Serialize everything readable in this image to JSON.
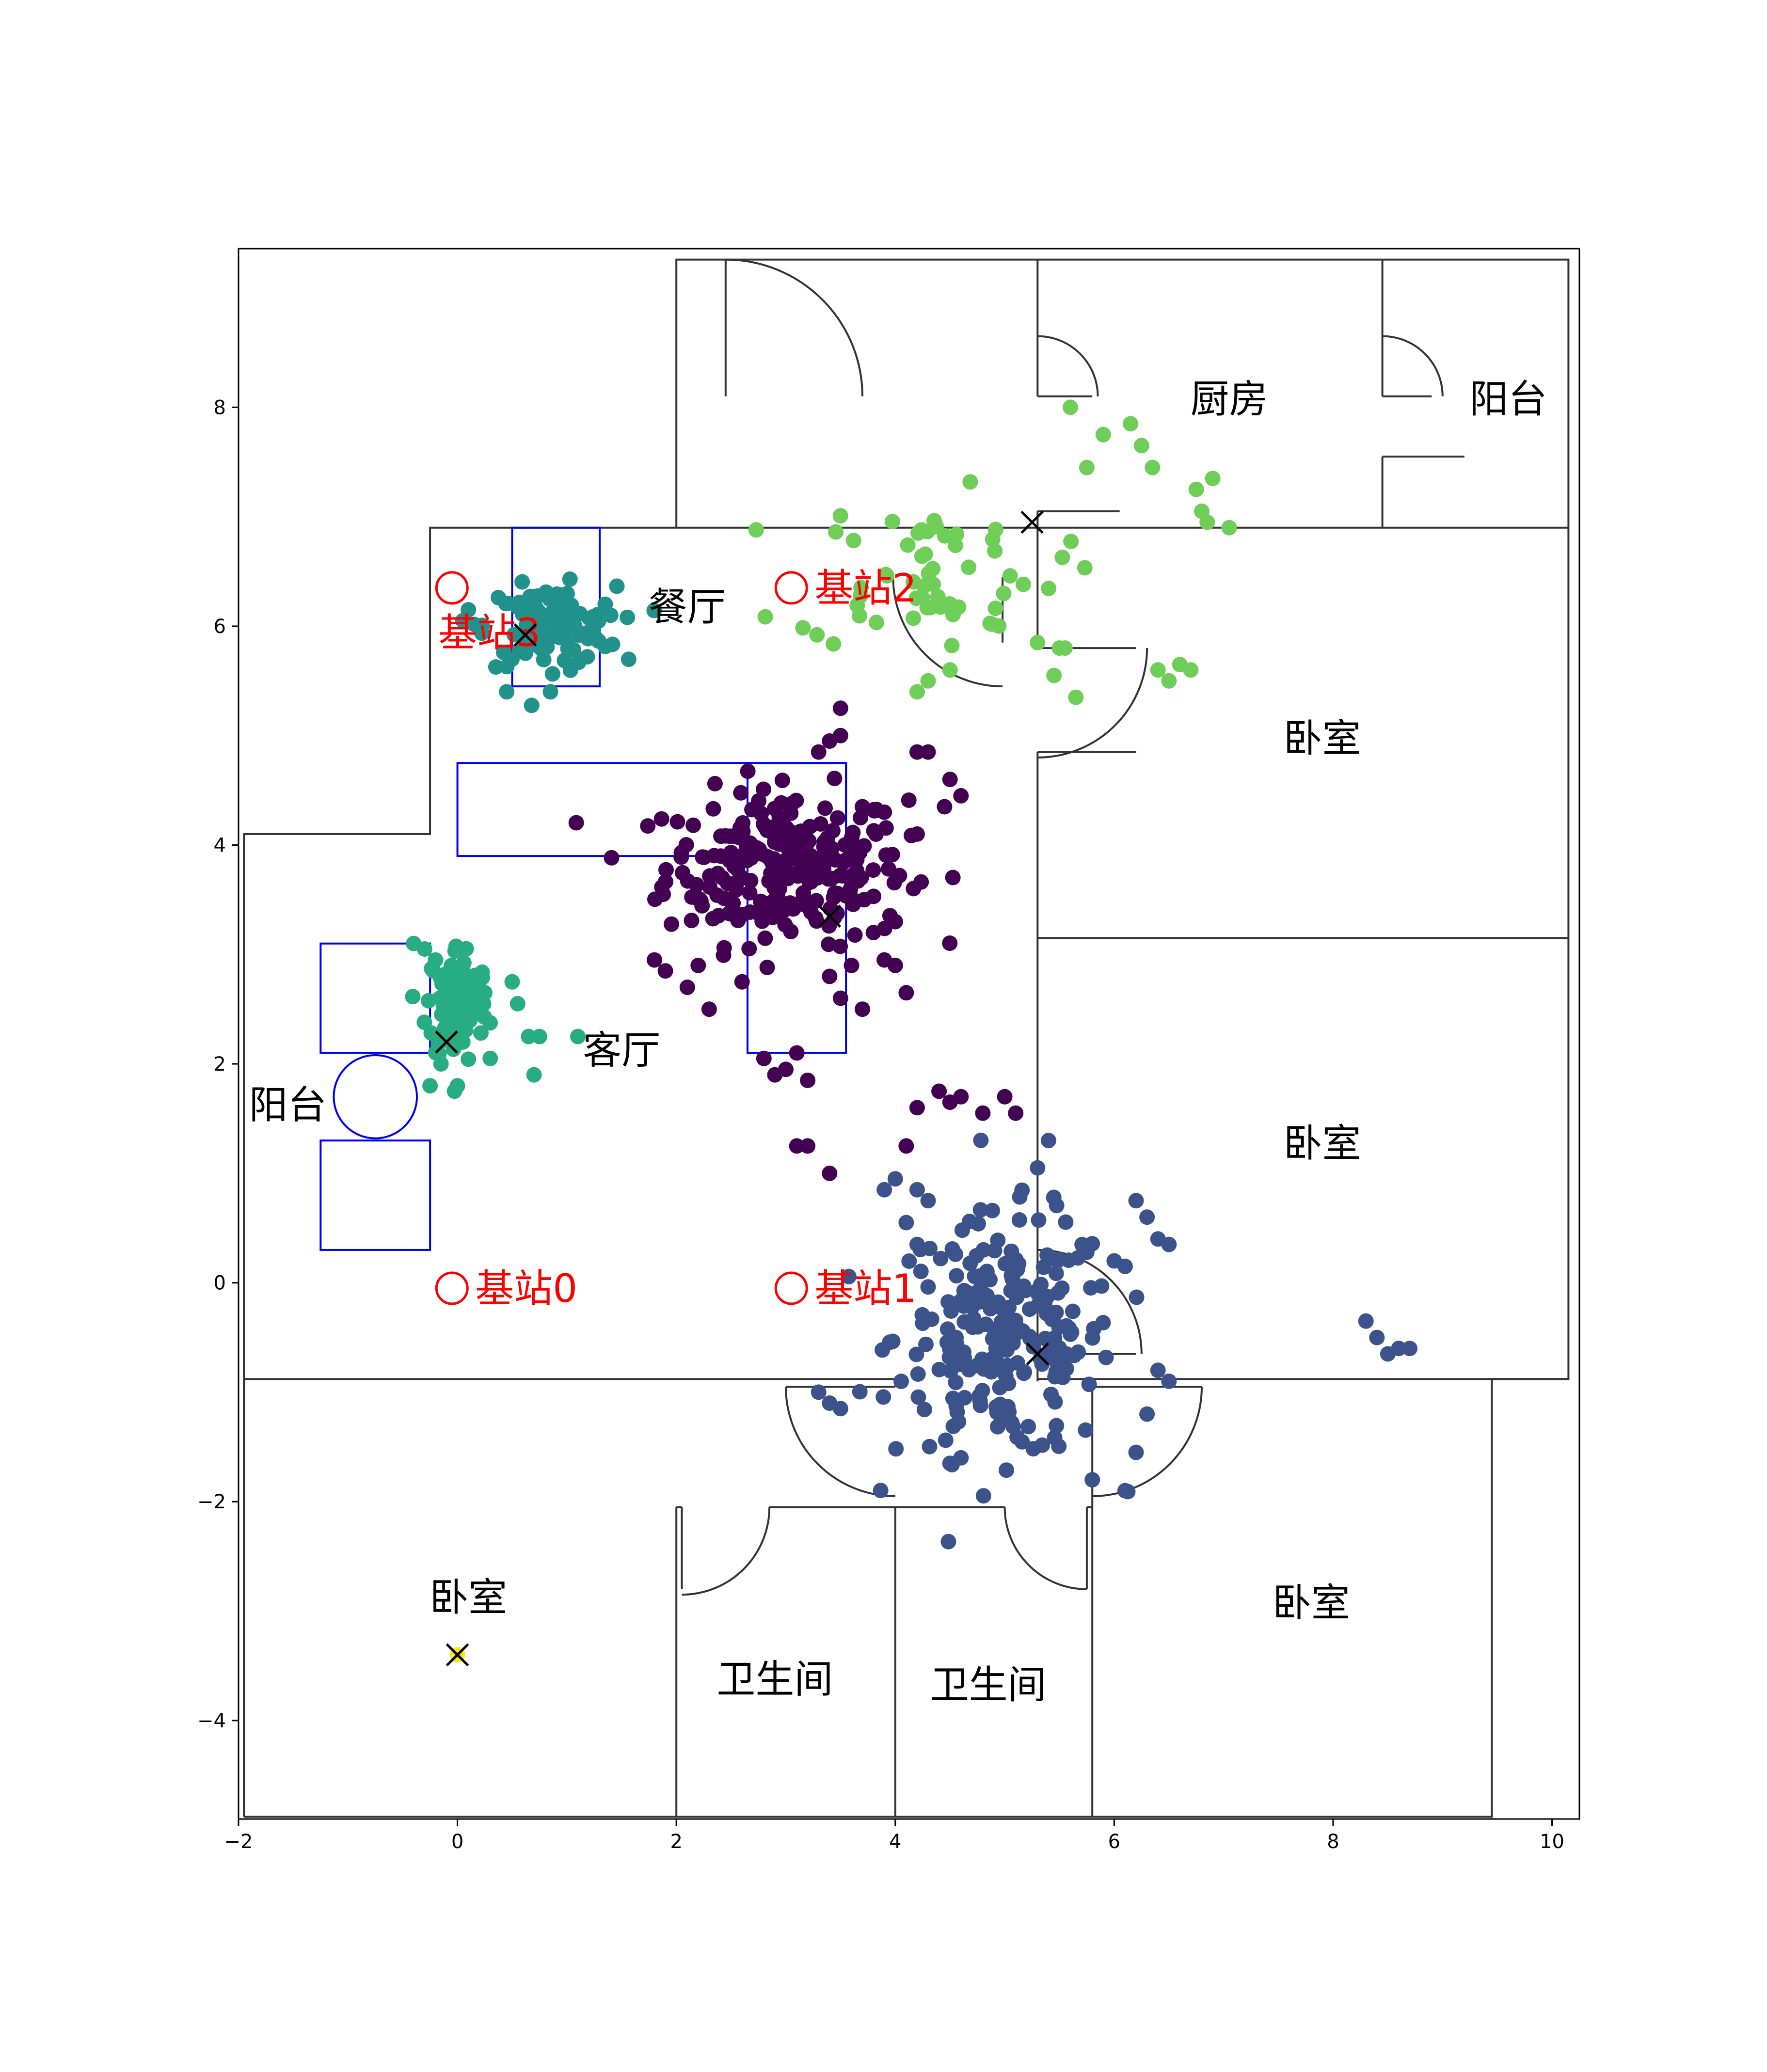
{
  "chart_data": {
    "type": "scatter",
    "xlim": [
      -2,
      10.25
    ],
    "ylim": [
      -4.9,
      9.45
    ],
    "x_ticks": [
      -2,
      0,
      2,
      4,
      6,
      8,
      10
    ],
    "y_ticks": [
      -4,
      -2,
      0,
      2,
      4,
      6,
      8
    ],
    "x_tick_labels": [
      "−2",
      "0",
      "2",
      "4",
      "6",
      "8",
      "10"
    ],
    "y_tick_labels": [
      "−4",
      "−2",
      "0",
      "2",
      "4",
      "6",
      "8"
    ],
    "grid": false,
    "colors": {
      "cluster_purple": "#440154",
      "cluster_blue": "#3b528b",
      "cluster_teal": "#21918c",
      "cluster_green": "#27ad81",
      "cluster_lightgreen": "#6ece58",
      "cluster_yellow": "#fde725",
      "walls": "#333333",
      "furniture": "#0000ff",
      "stations": "#ff0000"
    },
    "room_labels": [
      {
        "text": "厨房",
        "x": 7.05,
        "y": 8.05
      },
      {
        "text": "阳台",
        "x": 9.6,
        "y": 8.05
      },
      {
        "text": "餐厅",
        "x": 2.1,
        "y": 6.15
      },
      {
        "text": "卧室",
        "x": 7.9,
        "y": 4.95
      },
      {
        "text": "客厅",
        "x": 1.5,
        "y": 2.1
      },
      {
        "text": "阳台",
        "x": -1.55,
        "y": 1.6
      },
      {
        "text": "卧室",
        "x": 7.9,
        "y": 1.25
      },
      {
        "text": "卧室",
        "x": 0.1,
        "y": -2.9
      },
      {
        "text": "卧室",
        "x": 7.8,
        "y": -2.95
      },
      {
        "text": "卫生间",
        "x": 2.9,
        "y": -3.65
      },
      {
        "text": "卫生间",
        "x": 4.85,
        "y": -3.7
      }
    ],
    "stations": [
      {
        "label": "基站0",
        "x": -0.05,
        "y": -0.05
      },
      {
        "label": "基站1",
        "x": 3.05,
        "y": -0.05
      },
      {
        "label": "基站2",
        "x": 3.05,
        "y": 6.35
      },
      {
        "label": "基站3",
        "x": -0.05,
        "y": 6.35
      }
    ],
    "centroids": [
      {
        "x": 3.4,
        "y": 3.35
      },
      {
        "x": 5.3,
        "y": -0.65
      },
      {
        "x": 0.62,
        "y": 5.92
      },
      {
        "x": -0.1,
        "y": 2.2
      },
      {
        "x": 5.25,
        "y": 6.95
      },
      {
        "x": 0.0,
        "y": -3.4
      }
    ],
    "clusters": [
      {
        "color_key": "cluster_purple",
        "cx": 3.0,
        "cy": 3.8,
        "sx": 0.55,
        "sy": 0.35,
        "n": 260,
        "extra": [
          [
            1.8,
            2.95
          ],
          [
            1.9,
            2.85
          ],
          [
            2.1,
            2.7
          ],
          [
            2.2,
            2.9
          ],
          [
            2.3,
            2.5
          ],
          [
            2.6,
            2.75
          ],
          [
            2.8,
            2.05
          ],
          [
            3.0,
            1.95
          ],
          [
            3.1,
            2.1
          ],
          [
            3.2,
            1.85
          ],
          [
            2.9,
            1.9
          ],
          [
            3.4,
            2.8
          ],
          [
            3.5,
            2.6
          ],
          [
            3.6,
            2.9
          ],
          [
            3.7,
            2.5
          ],
          [
            3.9,
            2.95
          ],
          [
            4.0,
            2.9
          ],
          [
            4.1,
            2.65
          ],
          [
            3.8,
            3.2
          ],
          [
            4.0,
            3.3
          ],
          [
            3.4,
            4.95
          ],
          [
            3.5,
            5.0
          ],
          [
            3.3,
            4.85
          ],
          [
            3.5,
            5.25
          ],
          [
            4.2,
            4.85
          ],
          [
            4.3,
            4.85
          ],
          [
            4.5,
            4.6
          ],
          [
            4.6,
            4.45
          ],
          [
            4.2,
            4.1
          ],
          [
            3.7,
            4.35
          ],
          [
            4.45,
            4.35
          ],
          [
            5.0,
            1.7
          ],
          [
            5.1,
            1.55
          ],
          [
            4.8,
            1.55
          ],
          [
            4.6,
            1.7
          ],
          [
            4.4,
            1.75
          ],
          [
            4.2,
            1.6
          ],
          [
            3.4,
            1.0
          ],
          [
            3.1,
            1.25
          ],
          [
            3.2,
            1.25
          ],
          [
            4.1,
            1.25
          ],
          [
            4.5,
            1.65
          ]
        ]
      },
      {
        "color_key": "cluster_blue",
        "cx": 5.0,
        "cy": -0.5,
        "sx": 0.5,
        "sy": 0.55,
        "n": 230,
        "extra": [
          [
            3.3,
            -1.0
          ],
          [
            3.4,
            -1.1
          ],
          [
            3.5,
            -1.15
          ],
          [
            4.2,
            0.35
          ],
          [
            4.1,
            0.55
          ],
          [
            4.0,
            0.95
          ],
          [
            3.9,
            0.85
          ],
          [
            4.3,
            0.75
          ],
          [
            4.2,
            0.85
          ],
          [
            5.4,
            1.3
          ],
          [
            5.3,
            1.05
          ],
          [
            6.2,
            0.75
          ],
          [
            6.3,
            0.6
          ],
          [
            6.4,
            0.4
          ],
          [
            6.5,
            0.35
          ],
          [
            6.0,
            0.2
          ],
          [
            6.1,
            0.15
          ],
          [
            6.4,
            -0.8
          ],
          [
            6.5,
            -0.9
          ],
          [
            6.3,
            -1.2
          ],
          [
            6.2,
            -1.55
          ],
          [
            6.1,
            -1.9
          ],
          [
            5.8,
            -1.8
          ],
          [
            8.3,
            -0.35
          ],
          [
            8.4,
            -0.5
          ],
          [
            8.5,
            -0.65
          ],
          [
            8.6,
            -0.6
          ],
          [
            8.7,
            -0.6
          ],
          [
            4.5,
            -1.65
          ],
          [
            4.6,
            -1.6
          ]
        ]
      },
      {
        "color_key": "cluster_teal",
        "cx": 0.85,
        "cy": 6.0,
        "sx": 0.3,
        "sy": 0.18,
        "n": 110,
        "extra": [
          [
            0.05,
            6.05
          ],
          [
            0.1,
            6.15
          ],
          [
            0.45,
            5.4
          ],
          [
            0.85,
            5.4
          ],
          [
            1.4,
            6.1
          ],
          [
            1.35,
            6.2
          ]
        ]
      },
      {
        "color_key": "cluster_green",
        "cx": 0.0,
        "cy": 2.55,
        "sx": 0.14,
        "sy": 0.28,
        "n": 100,
        "extra": [
          [
            -0.4,
            3.1
          ],
          [
            -0.3,
            3.05
          ],
          [
            -0.2,
            2.95
          ],
          [
            0.25,
            2.65
          ],
          [
            0.5,
            2.75
          ],
          [
            0.55,
            2.55
          ],
          [
            0.65,
            2.25
          ],
          [
            0.75,
            2.25
          ],
          [
            0.7,
            1.9
          ],
          [
            1.1,
            2.25
          ],
          [
            -0.25,
            1.8
          ],
          [
            -0.15,
            2.0
          ],
          [
            0.3,
            2.05
          ],
          [
            0.0,
            1.8
          ]
        ]
      },
      {
        "color_key": "cluster_lightgreen",
        "cx": 4.3,
        "cy": 6.5,
        "sx": 0.6,
        "sy": 0.35,
        "n": 60,
        "extra": [
          [
            5.6,
            8.0
          ],
          [
            5.9,
            7.75
          ],
          [
            5.75,
            7.45
          ],
          [
            6.15,
            7.85
          ],
          [
            6.25,
            7.65
          ],
          [
            6.35,
            7.45
          ],
          [
            6.75,
            7.25
          ],
          [
            6.9,
            7.35
          ],
          [
            6.8,
            7.05
          ],
          [
            6.85,
            6.95
          ],
          [
            7.05,
            6.9
          ],
          [
            5.3,
            5.85
          ],
          [
            5.5,
            5.8
          ],
          [
            5.55,
            5.8
          ],
          [
            5.45,
            5.55
          ],
          [
            5.65,
            5.35
          ],
          [
            6.4,
            5.6
          ],
          [
            6.5,
            5.5
          ],
          [
            6.6,
            5.65
          ],
          [
            6.7,
            5.6
          ],
          [
            4.2,
            5.4
          ],
          [
            4.3,
            5.5
          ],
          [
            4.5,
            5.6
          ]
        ]
      },
      {
        "color_key": "cluster_yellow",
        "cx": 0.0,
        "cy": -3.4,
        "sx": 0.0,
        "sy": 0.0,
        "n": 1,
        "extra": []
      }
    ],
    "walls": [
      [
        [
          -1.95,
          -4.88
        ],
        [
          9.45,
          -4.88
        ],
        [
          9.45,
          -0.88
        ],
        [
          10.15,
          -0.88
        ],
        [
          10.15,
          9.35
        ],
        [
          2.0,
          9.35
        ],
        [
          2.0,
          6.9
        ],
        [
          -0.25,
          6.9
        ],
        [
          -0.25,
          4.1
        ],
        [
          -1.95,
          4.1
        ],
        [
          -1.95,
          -4.88
        ]
      ],
      [
        [
          -1.95,
          -0.88
        ],
        [
          4.0,
          -0.88
        ]
      ],
      [
        [
          -1.95,
          -0.88
        ],
        [
          -1.95,
          -4.88
        ]
      ],
      [
        [
          2.0,
          6.9
        ],
        [
          10.15,
          6.9
        ]
      ],
      [
        [
          5.3,
          9.35
        ],
        [
          5.3,
          8.1
        ]
      ],
      [
        [
          5.3,
          7.05
        ],
        [
          5.3,
          6.9
        ]
      ],
      [
        [
          8.45,
          9.35
        ],
        [
          8.45,
          8.1
        ]
      ],
      [
        [
          8.45,
          7.55
        ],
        [
          8.45,
          6.9
        ]
      ],
      [
        [
          5.3,
          6.9
        ],
        [
          5.3,
          5.8
        ]
      ],
      [
        [
          5.3,
          4.85
        ],
        [
          5.3,
          -0.9
        ]
      ],
      [
        [
          5.3,
          3.15
        ],
        [
          10.15,
          3.15
        ]
      ],
      [
        [
          5.3,
          -0.88
        ],
        [
          10.15,
          -0.88
        ]
      ],
      [
        [
          2.0,
          -4.88
        ],
        [
          2.0,
          -2.05
        ]
      ],
      [
        [
          4.0,
          -4.88
        ],
        [
          4.0,
          -2.05
        ]
      ],
      [
        [
          5.8,
          -4.88
        ],
        [
          5.8,
          -2.05
        ]
      ],
      [
        [
          2.0,
          -2.05
        ],
        [
          2.05,
          -2.05
        ]
      ],
      [
        [
          2.85,
          -2.05
        ],
        [
          4.0,
          -2.05
        ]
      ],
      [
        [
          4.0,
          -2.05
        ],
        [
          5.0,
          -2.05
        ]
      ],
      [
        [
          5.75,
          -2.05
        ],
        [
          5.8,
          -2.05
        ]
      ],
      [
        [
          5.8,
          -2.05
        ],
        [
          5.8,
          -0.95
        ]
      ],
      [
        [
          2.05,
          -2.05
        ],
        [
          2.05,
          -2.8
        ]
      ],
      [
        [
          5.75,
          -2.05
        ],
        [
          5.75,
          -2.8
        ]
      ],
      [
        [
          4.0,
          -0.88
        ],
        [
          4.0,
          -0.95
        ]
      ],
      [
        [
          5.8,
          -0.95
        ],
        [
          6.8,
          -0.95
        ]
      ],
      [
        [
          4.0,
          -0.95
        ],
        [
          3.0,
          -0.95
        ]
      ],
      [
        [
          2.45,
          9.35
        ],
        [
          2.45,
          8.1
        ]
      ],
      [
        [
          4.98,
          6.45
        ],
        [
          4.98,
          5.85
        ]
      ],
      [
        [
          5.3,
          -0.65
        ],
        [
          6.2,
          -0.65
        ]
      ],
      [
        [
          5.3,
          8.1
        ],
        [
          5.8,
          8.1
        ]
      ],
      [
        [
          5.3,
          7.05
        ],
        [
          6.05,
          7.05
        ]
      ],
      [
        [
          8.45,
          8.1
        ],
        [
          8.9,
          8.1
        ]
      ],
      [
        [
          8.45,
          7.55
        ],
        [
          9.2,
          7.55
        ]
      ],
      [
        [
          5.3,
          5.8
        ],
        [
          6.2,
          5.8
        ]
      ],
      [
        [
          5.3,
          4.85
        ],
        [
          6.2,
          4.85
        ]
      ]
    ],
    "furniture_rects": [
      {
        "x0": 0.5,
        "y0": 5.45,
        "x1": 1.3,
        "y1": 6.9
      },
      {
        "x0": 0.0,
        "y0": 3.9,
        "x1": 3.55,
        "y1": 4.75
      },
      {
        "x0": 2.65,
        "y0": 2.1,
        "x1": 3.55,
        "y1": 4.75
      },
      {
        "x0": -1.25,
        "y0": 2.1,
        "x1": -0.25,
        "y1": 3.1
      },
      {
        "x0": -1.25,
        "y0": 0.3,
        "x1": -0.25,
        "y1": 1.3
      }
    ],
    "furniture_circles": [
      {
        "cx": -0.75,
        "cy": 1.7,
        "r": 0.38
      }
    ]
  }
}
